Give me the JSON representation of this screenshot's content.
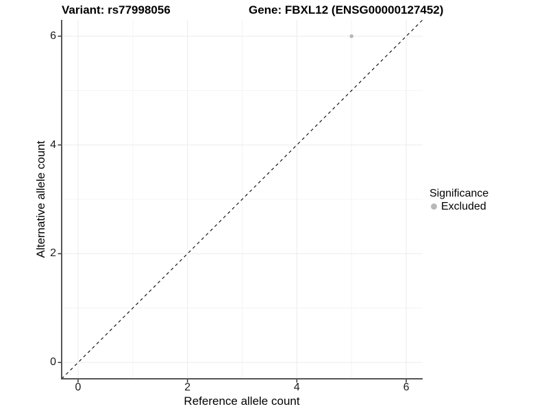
{
  "chart_data": {
    "type": "scatter",
    "title_variant": "Variant: rs77998056",
    "title_gene": "Gene: FBXL12 (ENSG00000127452)",
    "xlabel": "Reference allele count",
    "ylabel": "Alternative allele count",
    "xlim": [
      -0.3,
      6.3
    ],
    "ylim": [
      -0.3,
      6.3
    ],
    "x_ticks": [
      0,
      2,
      4,
      6
    ],
    "y_ticks": [
      0,
      2,
      4,
      6
    ],
    "x_minor_ticks": [
      1,
      3,
      5
    ],
    "y_minor_ticks": [
      1,
      3,
      5
    ],
    "grid": true,
    "series": [
      {
        "name": "Excluded",
        "color": "#b8b8b8",
        "point_radius": 2.8,
        "points": [
          {
            "x": 5,
            "y": 6
          }
        ]
      }
    ],
    "reference_line": {
      "label": "identity (y = x)",
      "style": "dashed",
      "color": "#000000",
      "from": [
        -0.3,
        -0.3
      ],
      "to": [
        6.3,
        6.3
      ]
    },
    "legend": {
      "title": "Significance",
      "position": "right",
      "items": [
        {
          "label": "Excluded",
          "color": "#b8b8b8"
        }
      ]
    }
  },
  "colors": {
    "background": "#ffffff",
    "grid_major": "#ebebeb",
    "grid_minor": "#f4f4f4",
    "axis_line": "#555555",
    "tick_mark": "#333333",
    "tick_label": "#1a1a1a"
  }
}
